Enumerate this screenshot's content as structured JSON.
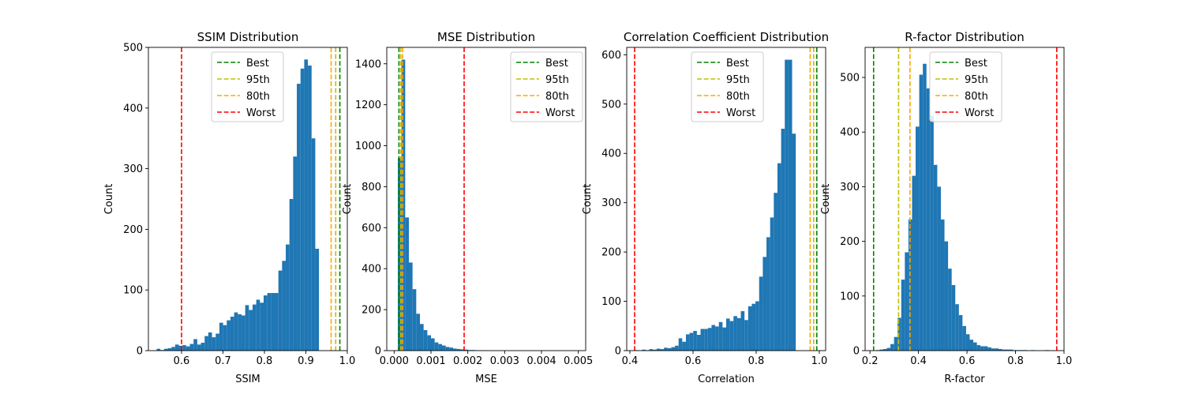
{
  "chart_data": [
    {
      "type": "bar",
      "title": "SSIM Distribution",
      "xlabel": "SSIM",
      "ylabel": "Count",
      "xlim": [
        0.52,
        1.0
      ],
      "ylim": [
        0,
        500
      ],
      "xticks": [
        0.6,
        0.7,
        0.8,
        0.9,
        1.0
      ],
      "xtick_labels": [
        "0.6",
        "0.7",
        "0.8",
        "0.9",
        "1.0"
      ],
      "yticks": [
        0,
        100,
        200,
        300,
        400,
        500
      ],
      "ytick_labels": [
        "0",
        "100",
        "200",
        "300",
        "400",
        "500"
      ],
      "bin_start": 0.54,
      "bin_width": 0.0089,
      "counts": [
        3,
        1,
        3,
        4,
        6,
        10,
        8,
        9,
        7,
        11,
        19,
        10,
        13,
        24,
        30,
        22,
        28,
        46,
        42,
        50,
        56,
        63,
        60,
        58,
        75,
        67,
        76,
        84,
        79,
        91,
        95,
        95,
        95,
        132,
        148,
        175,
        250,
        320,
        440,
        465,
        480,
        470,
        350,
        168
      ],
      "vlines": [
        {
          "name": "Best",
          "x": 0.982,
          "color": "#008000"
        },
        {
          "name": "95th",
          "x": 0.972,
          "color": "#bfbf00"
        },
        {
          "name": "80th",
          "x": 0.961,
          "color": "#ffa500"
        },
        {
          "name": "Worst",
          "x": 0.6,
          "color": "#ff0000"
        }
      ],
      "legend": "upper center",
      "grid": false
    },
    {
      "type": "bar",
      "title": "MSE Distribution",
      "xlabel": "MSE",
      "ylabel": "Count",
      "xlim": [
        -0.0002,
        0.0052
      ],
      "ylim": [
        0,
        1480
      ],
      "xticks": [
        0,
        0.001,
        0.002,
        0.003,
        0.004,
        0.005
      ],
      "xtick_labels": [
        "0.000",
        "0.001",
        "0.002",
        "0.003",
        "0.004",
        "0.005"
      ],
      "yticks": [
        0,
        200,
        400,
        600,
        800,
        1000,
        1200,
        1400
      ],
      "ytick_labels": [
        "0",
        "200",
        "400",
        "600",
        "800",
        "1000",
        "1200",
        "1400"
      ],
      "bin_start": 0.0001,
      "bin_width": 0.0001,
      "counts": [
        940,
        1420,
        650,
        430,
        300,
        180,
        130,
        100,
        75,
        60,
        40,
        32,
        25,
        18,
        15,
        10,
        8,
        6,
        5,
        3,
        3,
        2,
        2,
        1,
        1
      ],
      "vlines": [
        {
          "name": "Best",
          "x": 0.00013,
          "color": "#008000"
        },
        {
          "name": "95th",
          "x": 0.00018,
          "color": "#bfbf00"
        },
        {
          "name": "80th",
          "x": 0.00023,
          "color": "#ffa500"
        },
        {
          "name": "Worst",
          "x": 0.0019,
          "color": "#ff0000"
        }
      ],
      "legend": "upper right",
      "grid": false
    },
    {
      "type": "bar",
      "title": "Correlation Coefficient Distribution",
      "xlabel": "Correlation",
      "ylabel": "Count",
      "xlim": [
        0.39,
        1.02
      ],
      "ylim": [
        0,
        615
      ],
      "xticks": [
        0.4,
        0.6,
        0.8,
        1.0
      ],
      "xtick_labels": [
        "0.4",
        "0.6",
        "0.8",
        "1.0"
      ],
      "yticks": [
        0,
        100,
        200,
        300,
        400,
        500,
        600
      ],
      "ytick_labels": [
        "0",
        "100",
        "200",
        "300",
        "400",
        "500",
        "600"
      ],
      "bin_start": 0.415,
      "bin_width": 0.0116,
      "counts": [
        1,
        0,
        2,
        1,
        3,
        2,
        4,
        3,
        6,
        5,
        7,
        10,
        25,
        18,
        33,
        36,
        40,
        32,
        44,
        44,
        46,
        52,
        49,
        58,
        47,
        65,
        60,
        70,
        66,
        80,
        62,
        90,
        95,
        100,
        150,
        190,
        230,
        270,
        320,
        380,
        450,
        590,
        590,
        440
      ],
      "vlines": [
        {
          "name": "Best",
          "x": 0.992,
          "color": "#008000"
        },
        {
          "name": "95th",
          "x": 0.982,
          "color": "#bfbf00"
        },
        {
          "name": "80th",
          "x": 0.971,
          "color": "#ffa500"
        },
        {
          "name": "Worst",
          "x": 0.415,
          "color": "#ff0000"
        }
      ],
      "legend": "upper center",
      "grid": false
    },
    {
      "type": "bar",
      "title": "R-factor Distribution",
      "xlabel": "R-factor",
      "ylabel": "Count",
      "xlim": [
        0.18,
        1.0
      ],
      "ylim": [
        0,
        555
      ],
      "xticks": [
        0.2,
        0.4,
        0.6,
        0.8,
        1.0
      ],
      "xtick_labels": [
        "0.2",
        "0.4",
        "0.6",
        "0.8",
        "1.0"
      ],
      "yticks": [
        0,
        100,
        200,
        300,
        400,
        500
      ],
      "ytick_labels": [
        "0",
        "100",
        "200",
        "300",
        "400",
        "500"
      ],
      "bin_start": 0.225,
      "bin_width": 0.01485,
      "counts": [
        1,
        2,
        3,
        5,
        12,
        25,
        60,
        130,
        180,
        240,
        320,
        410,
        505,
        525,
        480,
        430,
        340,
        300,
        240,
        200,
        150,
        120,
        85,
        65,
        45,
        30,
        20,
        15,
        10,
        8,
        8,
        6,
        4,
        4,
        3,
        2,
        2,
        2,
        1,
        1,
        1,
        1,
        0,
        1,
        0,
        0,
        0,
        1,
        0,
        0
      ],
      "vlines": [
        {
          "name": "Best",
          "x": 0.215,
          "color": "#008000"
        },
        {
          "name": "95th",
          "x": 0.318,
          "color": "#bfbf00"
        },
        {
          "name": "80th",
          "x": 0.365,
          "color": "#ffa500"
        },
        {
          "name": "Worst",
          "x": 0.97,
          "color": "#ff0000"
        }
      ],
      "legend": "upper left",
      "grid": false
    }
  ]
}
